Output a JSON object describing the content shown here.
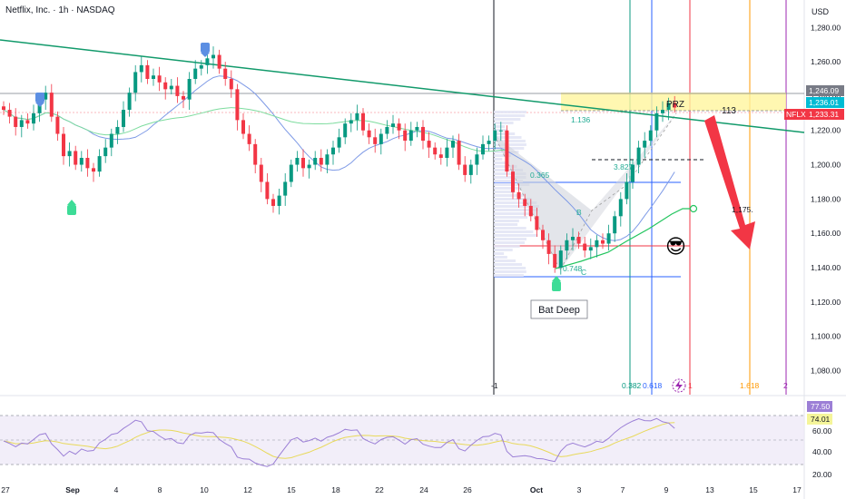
{
  "header": {
    "title": "Netflix, Inc. · 1h · NASDAQ",
    "currency": "USD"
  },
  "colors": {
    "up": "#089981",
    "down": "#f23645",
    "ma_blue": "#7e9ae6",
    "ma_green": "#7ddc9e",
    "trend": "#129a6b",
    "rsi": "#9b7fd6",
    "rsi_ma": "#e8d95a",
    "accent": "#7e57c2"
  },
  "chart_data": {
    "type": "candlestick",
    "symbol": "NFLX",
    "interval": "1h",
    "y_axis": {
      "min": 1066,
      "max": 1296,
      "ticks": [
        "1,280.00",
        "1,260.00",
        "1,240.00",
        "1,220.00",
        "1,200.00",
        "1,180.00",
        "1,160.00",
        "1,140.00",
        "1,120.00",
        "1,100.00",
        "1,080.00"
      ]
    },
    "x_axis_ticks": [
      "27",
      "Sep",
      "4",
      "8",
      "10",
      "12",
      "15",
      "18",
      "22",
      "24",
      "26",
      "Oct",
      "3",
      "7",
      "9",
      "13",
      "15",
      "17"
    ],
    "price_tags": [
      {
        "label": "1,246.09",
        "value": 1246.09,
        "color": "#787b86"
      },
      {
        "label": "1,236.01",
        "value": 1236.01,
        "color": "#00bcd4"
      },
      {
        "label": "1,233.31",
        "value": 1233.31,
        "color": "#f23645",
        "symbol": "NFLX"
      }
    ],
    "closes": [
      1232,
      1228,
      1222,
      1226,
      1224,
      1230,
      1238,
      1242,
      1228,
      1218,
      1205,
      1208,
      1200,
      1204,
      1198,
      1196,
      1205,
      1210,
      1218,
      1222,
      1232,
      1242,
      1254,
      1258,
      1250,
      1252,
      1248,
      1244,
      1246,
      1240,
      1238,
      1250,
      1256,
      1258,
      1262,
      1264,
      1256,
      1250,
      1244,
      1226,
      1218,
      1212,
      1200,
      1190,
      1180,
      1176,
      1182,
      1190,
      1200,
      1204,
      1198,
      1200,
      1204,
      1200,
      1206,
      1210,
      1216,
      1224,
      1226,
      1230,
      1220,
      1216,
      1212,
      1218,
      1222,
      1224,
      1220,
      1214,
      1220,
      1222,
      1214,
      1210,
      1206,
      1204,
      1210,
      1214,
      1200,
      1194,
      1200,
      1206,
      1212,
      1214,
      1220,
      1220,
      1196,
      1184,
      1180,
      1176,
      1170,
      1162,
      1156,
      1148,
      1140,
      1150,
      1156,
      1158,
      1154,
      1150,
      1152,
      1156,
      1154,
      1160,
      1170,
      1180,
      1190,
      1200,
      1210,
      1214,
      1220,
      1230,
      1232,
      1236,
      1233.31
    ],
    "indicators": {
      "rsi": {
        "levels": [
          "77.50",
          "74.01",
          "60.00",
          "40.00",
          "20.00"
        ],
        "current": "77.50",
        "ma": "74.01"
      }
    }
  },
  "annotations": {
    "fib_levels": [
      "-1",
      "0.382",
      "0.618",
      "1",
      "1.618",
      "2"
    ],
    "prz_label": "PRZ",
    "level_113": "113",
    "fib_1136": "1.136",
    "fib_0365": "0.365",
    "fib_3827": "3.827",
    "label_b": "B",
    "label_c": "C",
    "fib_0748": "0.748",
    "target_label": "1,175.",
    "pattern_name": "Bat Deep",
    "emoji": "😎"
  }
}
